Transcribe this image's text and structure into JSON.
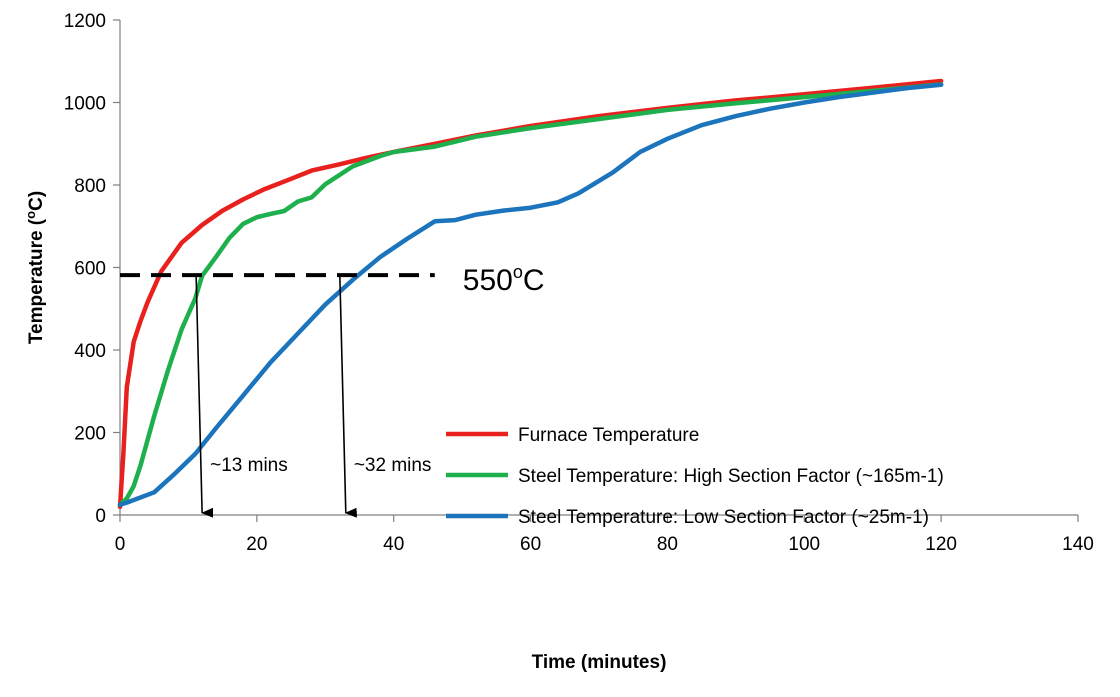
{
  "chart_data": {
    "type": "line",
    "title": "",
    "xlabel": "Time (minutes)",
    "ylabel_main": "Temperature (",
    "ylabel_sup": "o",
    "ylabel_tail": "C)",
    "xlim": [
      0,
      140
    ],
    "ylim": [
      0,
      1200
    ],
    "xticks": [
      0,
      20,
      40,
      60,
      80,
      100,
      120,
      140
    ],
    "yticks": [
      0,
      200,
      400,
      600,
      800,
      1000,
      1200
    ],
    "grid": false,
    "legend_position": "center-right",
    "series": [
      {
        "name": "Furnace Temperature",
        "color": "#E8211E",
        "x": [
          0,
          0.5,
          1,
          2,
          3,
          4,
          6,
          9,
          12,
          15,
          18,
          21,
          25,
          28,
          32,
          36,
          40,
          46,
          52,
          60,
          70,
          80,
          90,
          100,
          110,
          120
        ],
        "y": [
          20,
          150,
          310,
          420,
          470,
          515,
          590,
          660,
          703,
          738,
          765,
          789,
          815,
          835,
          850,
          866,
          880,
          900,
          920,
          943,
          967,
          987,
          1005,
          1020,
          1036,
          1052
        ]
      },
      {
        "name": "Steel Temperature: High Section Factor (~165m-1)",
        "color": "#1EB04C",
        "x": [
          0,
          1,
          2,
          3,
          5,
          7,
          9,
          11,
          12,
          14,
          16,
          18,
          20,
          22,
          24,
          26,
          28,
          30,
          34,
          38,
          40,
          46,
          52,
          60,
          70,
          80,
          90,
          100,
          110,
          120
        ],
        "y": [
          25,
          40,
          70,
          120,
          240,
          350,
          450,
          525,
          580,
          625,
          672,
          706,
          722,
          730,
          737,
          760,
          770,
          802,
          845,
          870,
          880,
          893,
          917,
          938,
          960,
          982,
          998,
          1013,
          1028,
          1044
        ]
      },
      {
        "name": "Steel Temperature: Low Section Factor (~25m-1)",
        "color": "#1C75BC",
        "x": [
          0,
          1,
          5,
          8,
          11,
          14,
          18,
          22,
          26,
          30,
          34,
          38,
          42,
          46,
          49,
          52,
          56,
          60,
          64,
          67,
          72,
          76,
          80,
          85,
          90,
          95,
          100,
          105,
          110,
          115,
          120
        ],
        "y": [
          25,
          30,
          55,
          100,
          148,
          210,
          290,
          370,
          440,
          510,
          570,
          625,
          670,
          712,
          715,
          728,
          738,
          745,
          758,
          780,
          830,
          880,
          912,
          945,
          967,
          985,
          1000,
          1013,
          1024,
          1035,
          1043
        ]
      }
    ],
    "threshold": {
      "value": 550,
      "x_start": 0,
      "x_end": 46,
      "label_main": "550",
      "label_sup": "o",
      "label_tail": "C"
    },
    "annotations": [
      {
        "x": 12,
        "label": "~13 mins"
      },
      {
        "x": 33,
        "label": "~32 mins"
      }
    ]
  }
}
